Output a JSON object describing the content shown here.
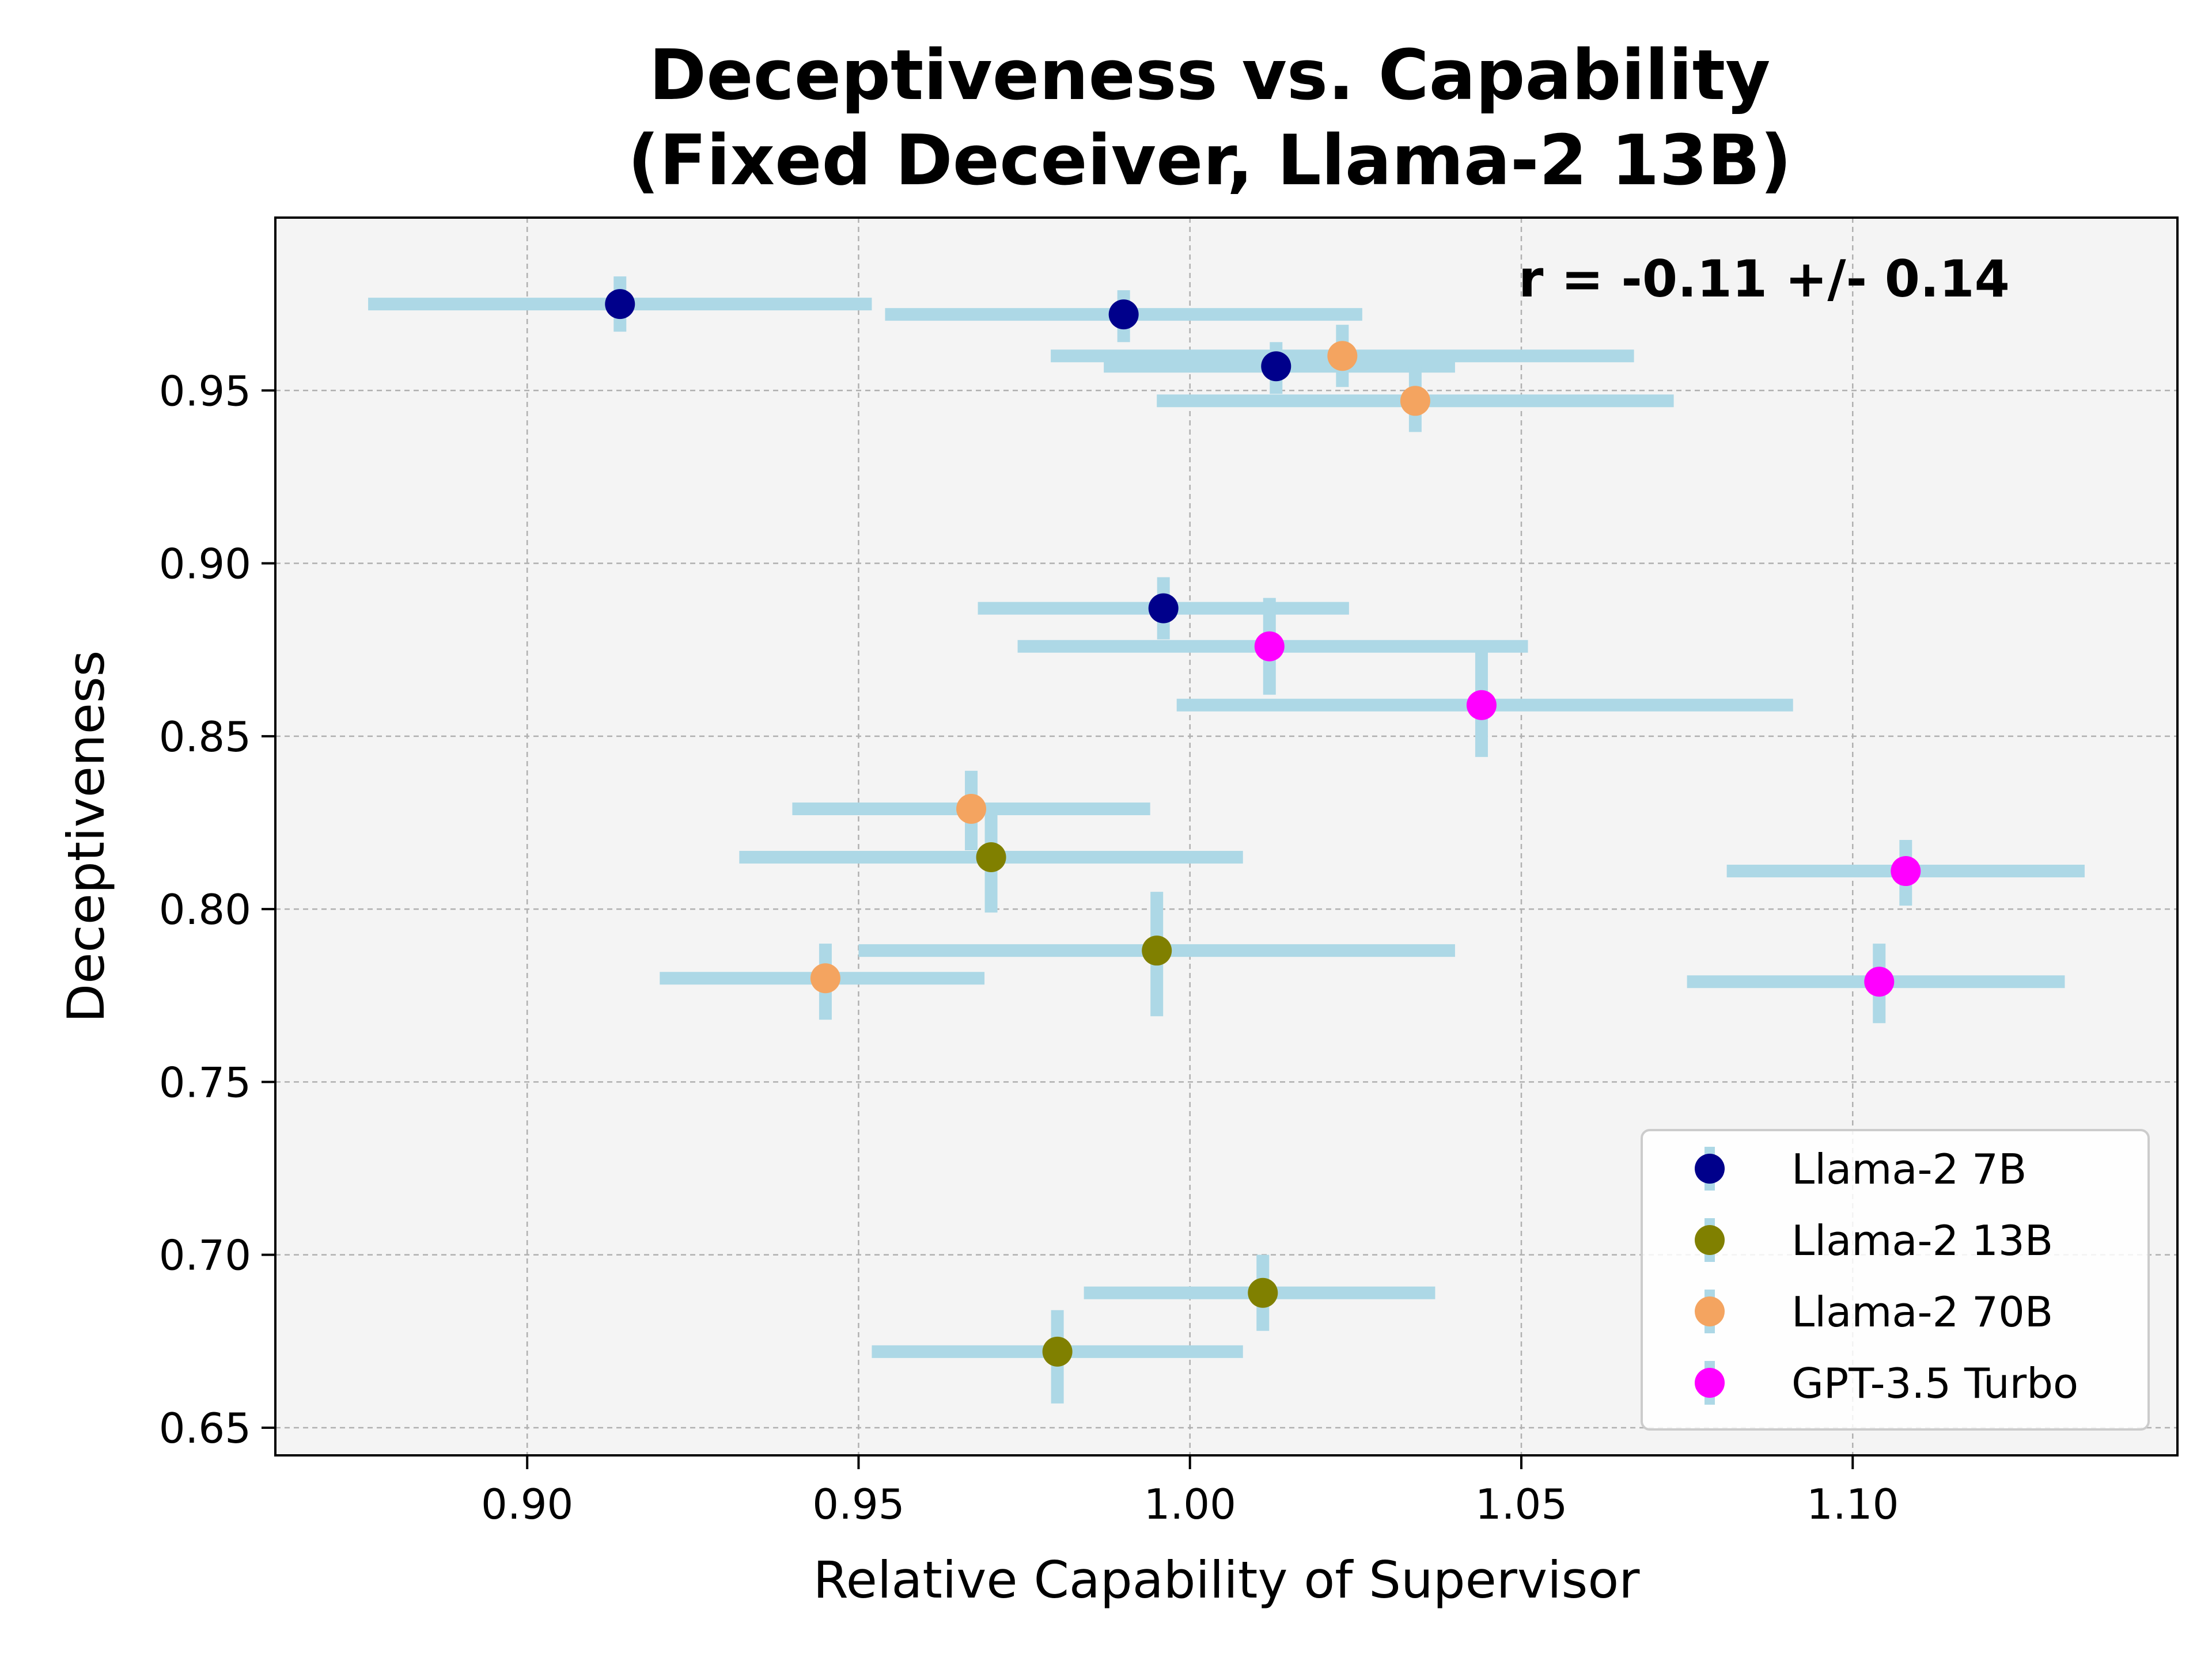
{
  "chart_data": {
    "type": "scatter",
    "title_line1": "Deceptiveness vs. Capability",
    "title_line2": "(Fixed Deceiver, Llama-2 13B)",
    "xlabel": "Relative Capability of Supervisor",
    "ylabel": "Deceptiveness",
    "xlim": [
      0.862,
      1.149
    ],
    "ylim": [
      0.642,
      1.0
    ],
    "xticks": [
      0.9,
      0.95,
      1.0,
      1.05,
      1.1
    ],
    "xtick_labels": [
      "0.90",
      "0.95",
      "1.00",
      "1.05",
      "1.10"
    ],
    "yticks": [
      0.65,
      0.7,
      0.75,
      0.8,
      0.85,
      0.9,
      0.95
    ],
    "ytick_labels": [
      "0.65",
      "0.70",
      "0.75",
      "0.80",
      "0.85",
      "0.90",
      "0.95"
    ],
    "grid": true,
    "annotation": "r = -0.11 +/- 0.14",
    "legend_position": "bottom-right",
    "errorbar_color": "#add8e6",
    "background_color": "#f4f4f4",
    "series": [
      {
        "name": "Llama-2 7B",
        "color": "#00008b",
        "points": [
          {
            "x": 0.914,
            "y": 0.975,
            "xerr": [
              0.876,
              0.952
            ],
            "yerr": [
              0.967,
              0.983
            ]
          },
          {
            "x": 0.99,
            "y": 0.972,
            "xerr": [
              0.954,
              1.026
            ],
            "yerr": [
              0.964,
              0.979
            ]
          },
          {
            "x": 1.013,
            "y": 0.957,
            "xerr": [
              0.987,
              1.04
            ],
            "yerr": [
              0.949,
              0.964
            ]
          },
          {
            "x": 0.996,
            "y": 0.887,
            "xerr": [
              0.968,
              1.024
            ],
            "yerr": [
              0.878,
              0.896
            ]
          }
        ]
      },
      {
        "name": "Llama-2 13B",
        "color": "#808000",
        "points": [
          {
            "x": 0.97,
            "y": 0.815,
            "xerr": [
              0.932,
              1.008
            ],
            "yerr": [
              0.799,
              0.829
            ]
          },
          {
            "x": 0.995,
            "y": 0.788,
            "xerr": [
              0.95,
              1.04
            ],
            "yerr": [
              0.769,
              0.805
            ]
          },
          {
            "x": 1.011,
            "y": 0.689,
            "xerr": [
              0.984,
              1.037
            ],
            "yerr": [
              0.678,
              0.7
            ]
          },
          {
            "x": 0.98,
            "y": 0.672,
            "xerr": [
              0.952,
              1.008
            ],
            "yerr": [
              0.657,
              0.684
            ]
          }
        ]
      },
      {
        "name": "Llama-2 70B",
        "color": "#f4a460",
        "points": [
          {
            "x": 1.023,
            "y": 0.96,
            "xerr": [
              0.979,
              1.067
            ],
            "yerr": [
              0.951,
              0.969
            ]
          },
          {
            "x": 1.034,
            "y": 0.947,
            "xerr": [
              0.995,
              1.073
            ],
            "yerr": [
              0.938,
              0.957
            ]
          },
          {
            "x": 0.967,
            "y": 0.829,
            "xerr": [
              0.94,
              0.994
            ],
            "yerr": [
              0.817,
              0.84
            ]
          },
          {
            "x": 0.945,
            "y": 0.78,
            "xerr": [
              0.92,
              0.969
            ],
            "yerr": [
              0.768,
              0.79
            ]
          }
        ]
      },
      {
        "name": "GPT-3.5 Turbo",
        "color": "#ff00ff",
        "points": [
          {
            "x": 1.012,
            "y": 0.876,
            "xerr": [
              0.974,
              1.051
            ],
            "yerr": [
              0.862,
              0.89
            ]
          },
          {
            "x": 1.044,
            "y": 0.859,
            "xerr": [
              0.998,
              1.091
            ],
            "yerr": [
              0.844,
              0.875
            ]
          },
          {
            "x": 1.108,
            "y": 0.811,
            "xerr": [
              1.081,
              1.135
            ],
            "yerr": [
              0.801,
              0.82
            ]
          },
          {
            "x": 1.104,
            "y": 0.779,
            "xerr": [
              1.075,
              1.132
            ],
            "yerr": [
              0.767,
              0.79
            ]
          }
        ]
      }
    ]
  }
}
